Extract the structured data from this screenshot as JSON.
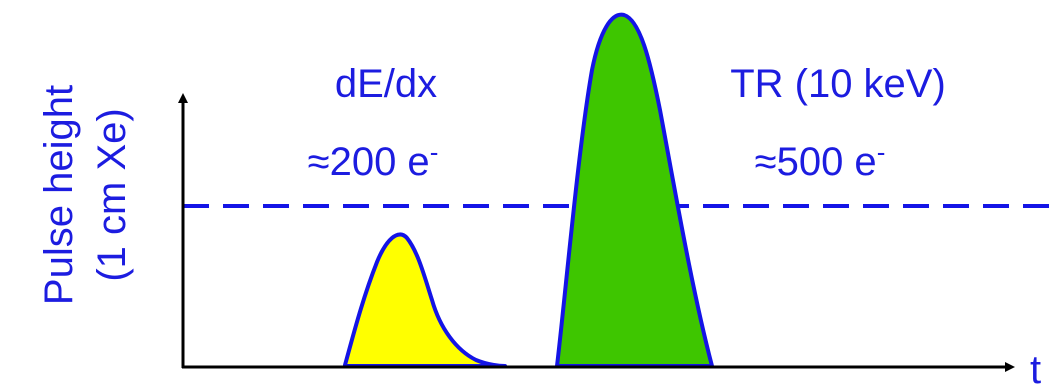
{
  "y_axis": {
    "label_line1": "Pulse height",
    "label_line2": "(1 cm Xe)"
  },
  "x_axis": {
    "label": "t"
  },
  "pulses": [
    {
      "title": "dE/dx",
      "charge_prefix": "≈200 e",
      "charge_superscript": "-",
      "fill_color": "#ffff00"
    },
    {
      "title": "TR (10 keV)",
      "charge_prefix": "≈500 e",
      "charge_superscript": "-",
      "fill_color": "#3ec600"
    }
  ],
  "colors": {
    "text": "#1c1ce0",
    "outline": "#1414e6",
    "threshold_line": "#1414e6",
    "axes": "#000000"
  }
}
